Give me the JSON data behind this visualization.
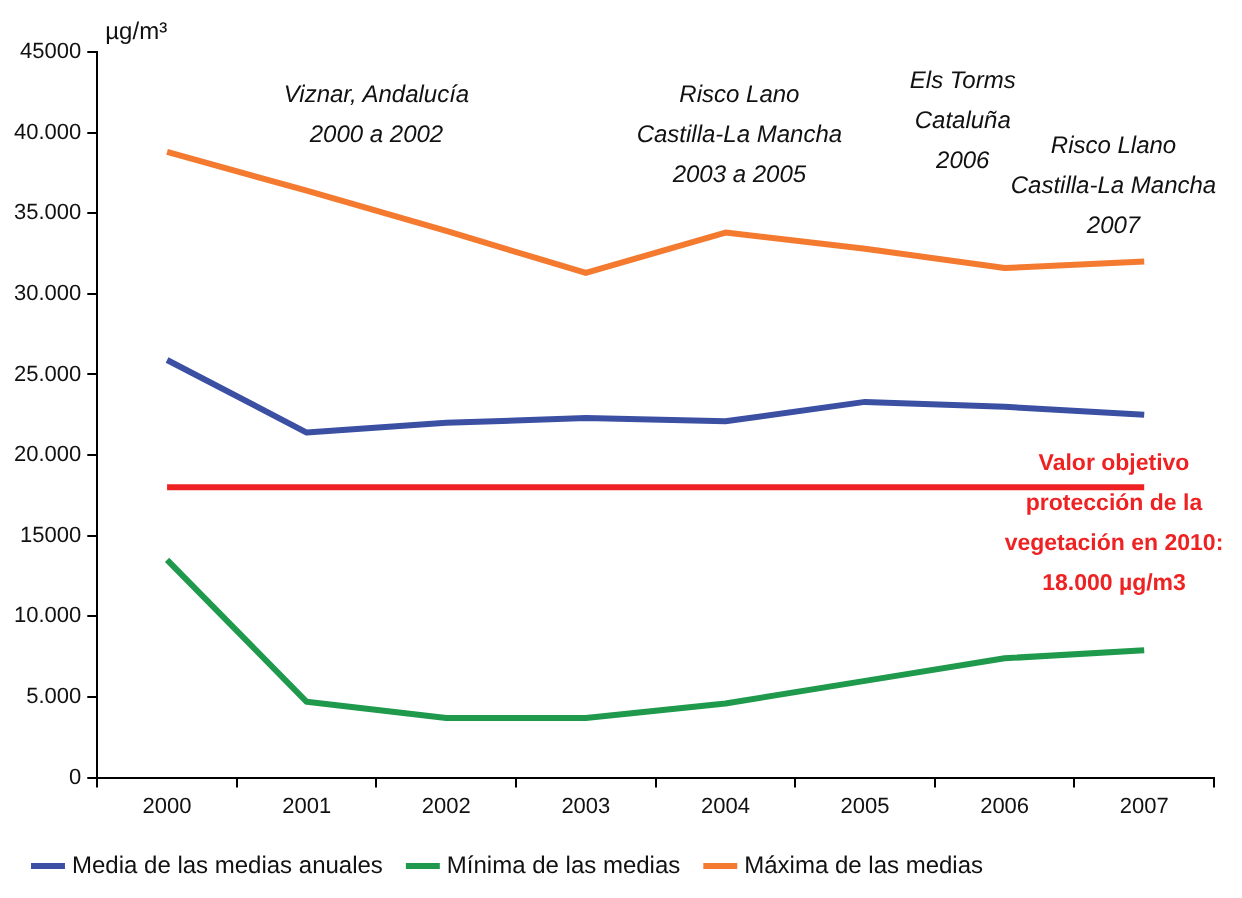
{
  "chart_data": {
    "type": "line",
    "ylabel": "µg/m³",
    "categories": [
      "2000",
      "2001",
      "2002",
      "2003",
      "2004",
      "2005",
      "2006",
      "2007"
    ],
    "series": [
      {
        "name": "Media de las medias anuales",
        "color": "#3b4fa3",
        "values": [
          25900,
          21400,
          22000,
          22300,
          22100,
          23300,
          23000,
          22500
        ]
      },
      {
        "name": "Mínima de las medias",
        "color": "#1f9a4c",
        "values": [
          13500,
          4700,
          3700,
          3700,
          4600,
          6000,
          7400,
          7900
        ]
      },
      {
        "name": "Máxima de las medias",
        "color": "#f47a30",
        "values": [
          38800,
          36400,
          33900,
          31300,
          33800,
          32800,
          31600,
          32000
        ]
      }
    ],
    "ylim": [
      0,
      45000
    ],
    "yticks": [
      0,
      {
        "value": 5000,
        "label": "5.000"
      },
      {
        "value": 10000,
        "label": "10.000"
      },
      15000,
      {
        "value": 20000,
        "label": "20.000"
      },
      {
        "value": 25000,
        "label": "25.000"
      },
      {
        "value": 30000,
        "label": "30.000"
      },
      {
        "value": 35000,
        "label": "35.000"
      },
      {
        "value": 40000,
        "label": "40.000"
      },
      45000
    ],
    "ref_lines": [
      {
        "axis": "y",
        "value": 18000,
        "label": "Valor objetivo\nprotección de la\nvegetación en 2010:\n18.000 µg/m3",
        "color": "#ee2222"
      }
    ],
    "annotations": [
      "Viznar, Andalucía\n2000 a 2002",
      "Risco Lano\nCastilla-La Mancha\n2003 a 2005",
      "Els Torms\nCataluña\n2006",
      "Risco Llano\nCastilla-La Mancha\n2007"
    ],
    "legend": "bottom",
    "grid": false,
    "marker": "none",
    "line_style": "solid"
  }
}
